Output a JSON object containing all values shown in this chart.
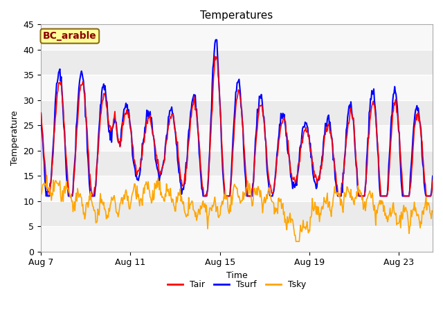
{
  "title": "Temperatures",
  "xlabel": "Time",
  "ylabel": "Temperature",
  "ylim": [
    0,
    45
  ],
  "yticks": [
    0,
    5,
    10,
    15,
    20,
    25,
    30,
    35,
    40,
    45
  ],
  "xtick_labels": [
    "Aug 7",
    "Aug 11",
    "Aug 15",
    "Aug 19",
    "Aug 23"
  ],
  "xtick_days": [
    0,
    4,
    8,
    12,
    16
  ],
  "total_days": 17.5,
  "n_points": 600,
  "fig_bg": "#ffffff",
  "plot_bg": "#e8e8e8",
  "grid_color": "#f5f5f5",
  "annotation_text": "BC_arable",
  "annotation_fg": "#8b0000",
  "annotation_bg": "#ffff99",
  "annotation_border": "#8b6914",
  "legend_items": [
    "Tair",
    "Tsurf",
    "Tsky"
  ],
  "tair_color": "#ff0000",
  "tsurf_color": "#0000ff",
  "tsky_color": "#ffa500",
  "tair_lw": 1.2,
  "tsurf_lw": 1.5,
  "tsky_lw": 1.2,
  "title_fontsize": 11,
  "label_fontsize": 9,
  "tick_fontsize": 9,
  "legend_fontsize": 9
}
